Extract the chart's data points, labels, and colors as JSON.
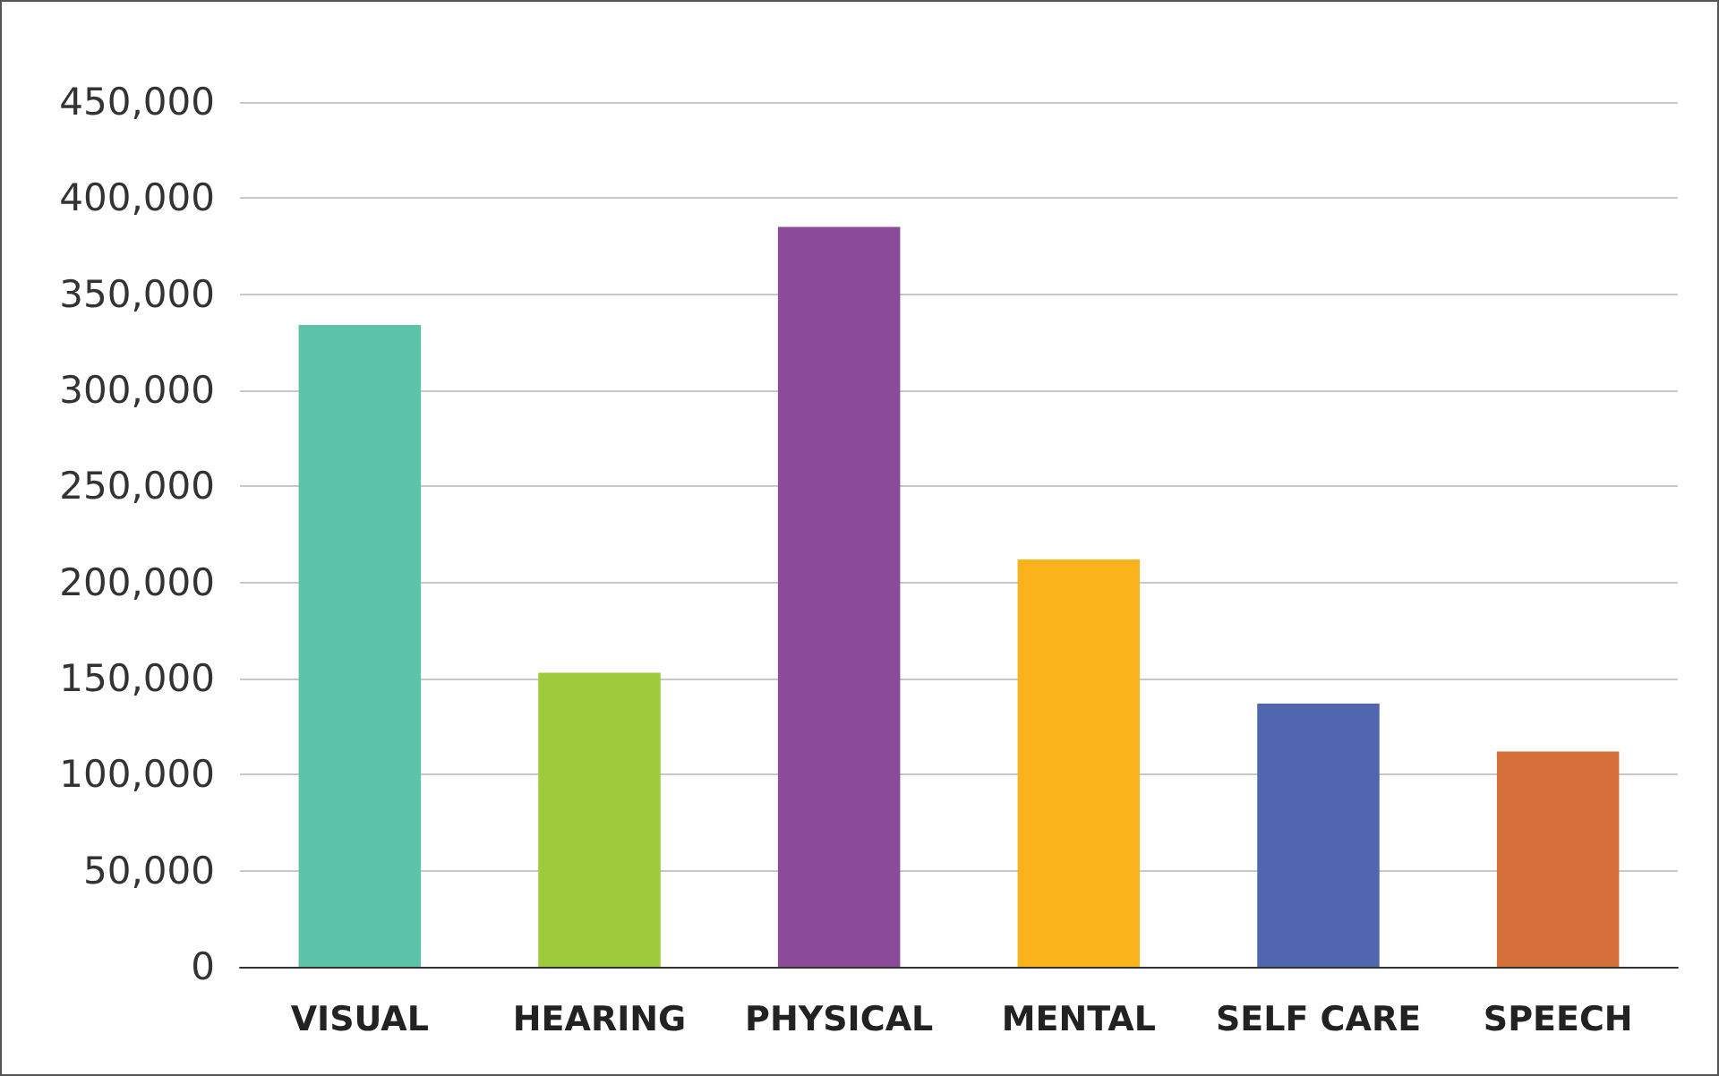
{
  "chart_data": {
    "type": "bar",
    "categories": [
      "VISUAL",
      "HEARING",
      "PHYSICAL",
      "MENTAL",
      "SELF CARE",
      "SPEECH"
    ],
    "values": [
      334000,
      153000,
      385000,
      212000,
      137000,
      112000
    ],
    "colors": [
      "#5cc3a9",
      "#9dcb3c",
      "#8c4b98",
      "#fbb31b",
      "#5067b0",
      "#d5703b"
    ],
    "ylim": [
      0,
      450000
    ],
    "yticks": [
      0,
      {
        "value": 50000,
        "label": "50,000"
      },
      {
        "value": 100000,
        "label": "100,000"
      },
      {
        "value": 150000,
        "label": "150,000"
      },
      {
        "value": 200000,
        "label": "200,000"
      },
      {
        "value": 250000,
        "label": "250,000"
      },
      {
        "value": 300000,
        "label": "300,000"
      },
      {
        "value": 350000,
        "label": "350,000"
      },
      {
        "value": 400000,
        "label": "400,000"
      },
      {
        "value": 450000,
        "label": "450,000"
      }
    ],
    "grid": "y"
  }
}
